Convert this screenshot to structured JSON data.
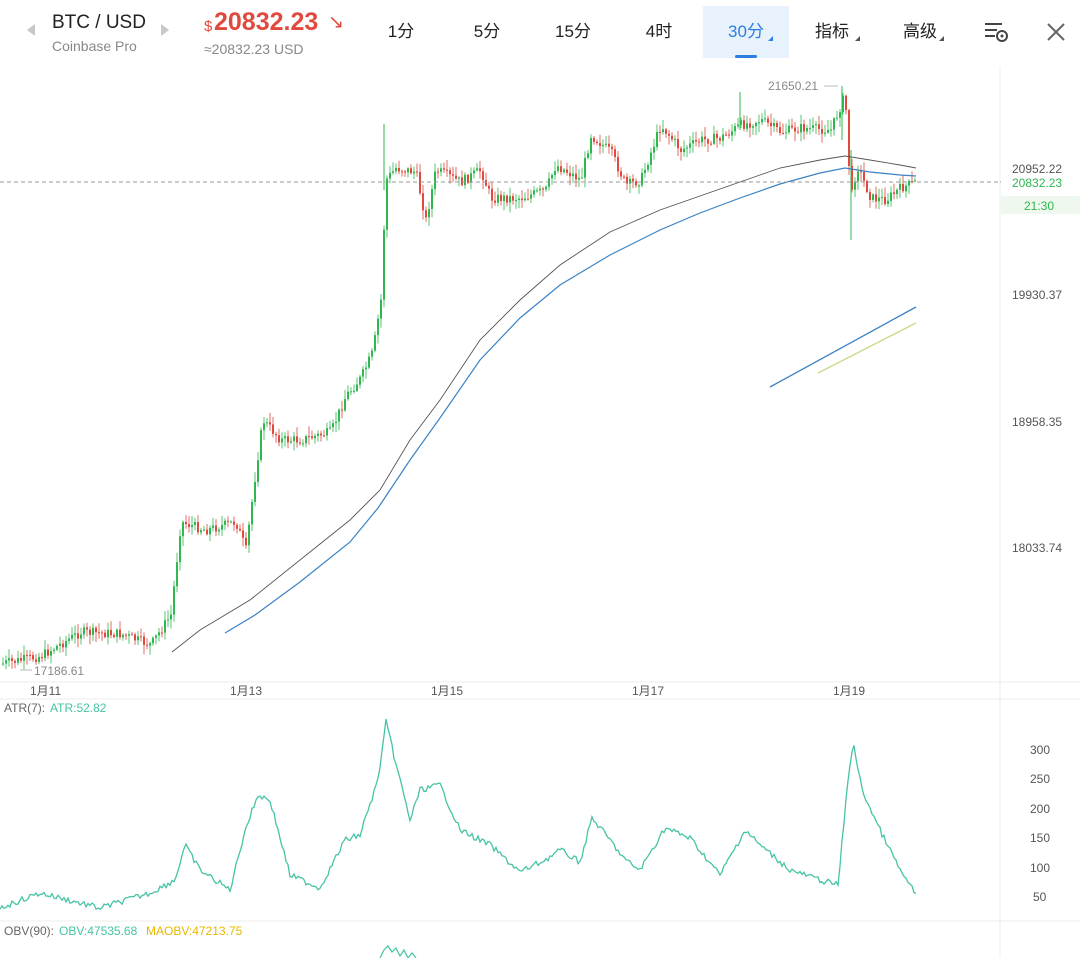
{
  "header": {
    "pair": "BTC / USD",
    "exchange": "Coinbase Pro",
    "price_symbol": "$",
    "price": "20832.23",
    "price_arrow": "↘",
    "price_equiv": "≈20832.23 USD"
  },
  "tabs": [
    {
      "label": "1分"
    },
    {
      "label": "5分"
    },
    {
      "label": "15分"
    },
    {
      "label": "4时"
    },
    {
      "label": "30分",
      "active": true
    },
    {
      "label": "指标"
    },
    {
      "label": "高级"
    }
  ],
  "toolbar": {
    "settings_icon": "chart-settings-icon",
    "close_icon": "close-icon"
  },
  "chart": {
    "price_axis_labels": [
      "20952.22",
      "19930.37",
      "18958.35",
      "18033.74"
    ],
    "current_price_label": "20832.23",
    "countdown_label": "21:30",
    "high_label": "21650.21",
    "low_label": "17186.61",
    "x_labels": [
      "1月11",
      "1月13",
      "1月15",
      "1月17",
      "1月19"
    ],
    "colors": {
      "up": "#2fb84f",
      "down": "#e04a3e",
      "ma_blue": "#3b82c4",
      "ma_gray": "#555555",
      "ma_yellow": "#c9d98a",
      "atr": "#46c3a6",
      "maobv": "#e6b800"
    }
  },
  "atr_panel": {
    "title": "ATR(7):",
    "value_label": "ATR:52.82",
    "axis_labels": [
      "300",
      "250",
      "200",
      "150",
      "100",
      "50"
    ]
  },
  "obv_panel": {
    "title": "OBV(90):",
    "obv_label": "OBV:47535.68",
    "maobv_label": "MAOBV:47213.75"
  }
}
